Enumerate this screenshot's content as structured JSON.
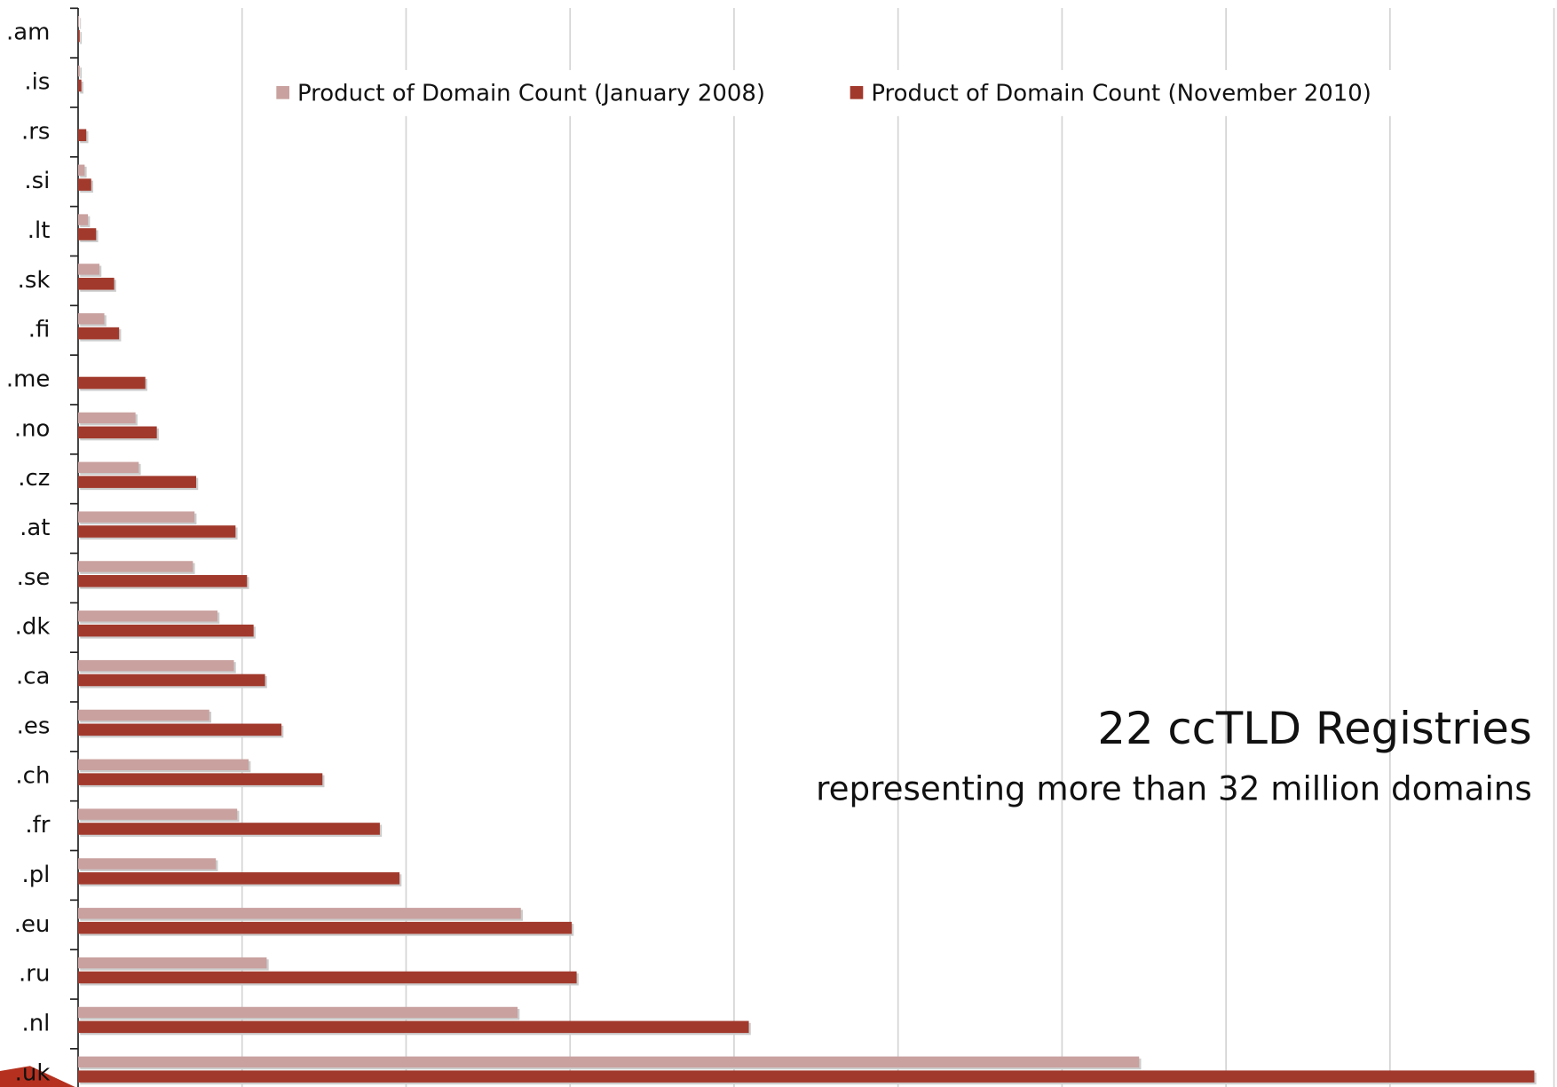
{
  "chart_data": {
    "type": "bar",
    "orientation": "horizontal",
    "categories": [
      ".am",
      ".is",
      ".rs",
      ".si",
      ".lt",
      ".sk",
      ".fi",
      ".me",
      ".no",
      ".cz",
      ".at",
      ".se",
      ".dk",
      ".ca",
      ".es",
      ".ch",
      ".fr",
      ".pl",
      ".eu",
      ".ru",
      ".nl",
      ".uk"
    ],
    "series": [
      {
        "name": "Product of Domain Count (January 2008)",
        "color": "#c9a19f",
        "values": [
          0.005,
          0.01,
          null,
          0.04,
          0.06,
          0.13,
          0.16,
          null,
          0.35,
          0.37,
          0.71,
          0.7,
          0.85,
          0.95,
          0.8,
          1.04,
          0.97,
          0.84,
          2.7,
          1.15,
          2.68,
          6.47
        ]
      },
      {
        "name": "Product of Domain Count (November 2010)",
        "color": "#a1392c",
        "values": [
          0.01,
          0.02,
          0.05,
          0.08,
          0.11,
          0.22,
          0.25,
          0.41,
          0.48,
          0.72,
          0.96,
          1.03,
          1.07,
          1.14,
          1.24,
          1.49,
          1.84,
          1.96,
          3.01,
          3.04,
          4.09,
          8.88
        ]
      }
    ],
    "xlim": [
      0,
      9
    ],
    "xticks": [
      0,
      1,
      2,
      3,
      4,
      5,
      6,
      7,
      8,
      9
    ],
    "grid": true,
    "legend": "top",
    "annotations": [
      "22 ccTLD Registries",
      "representing more than 32 million domains"
    ]
  }
}
